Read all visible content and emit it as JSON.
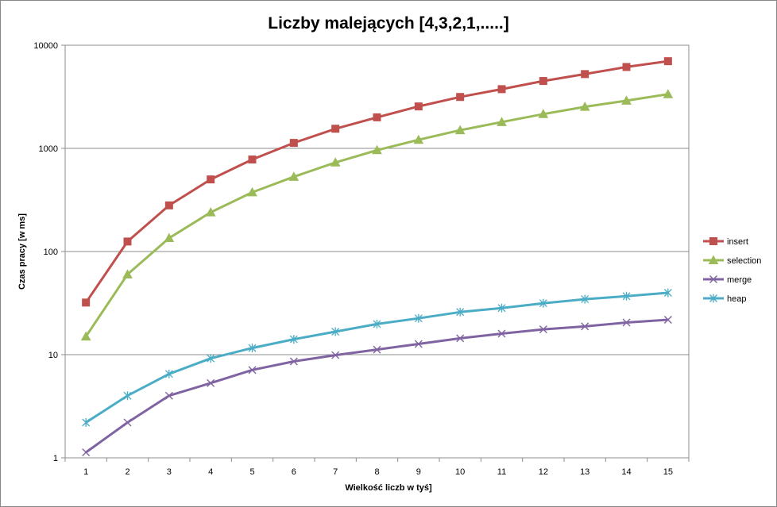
{
  "chart_data": {
    "type": "line",
    "title": "Liczby malejących [4,3,2,1,.....]",
    "xlabel": "Wielkość liczb w tyś]",
    "ylabel": "Czas pracy [w ms]",
    "y_scale": "log",
    "ylim": [
      1,
      10000
    ],
    "y_ticks": [
      "1",
      "10",
      "100",
      "1000",
      "10000"
    ],
    "grid": true,
    "legend_position": "right",
    "categories": [
      "1",
      "2",
      "3",
      "4",
      "5",
      "6",
      "7",
      "8",
      "9",
      "10",
      "11",
      "12",
      "13",
      "14",
      "15"
    ],
    "series": [
      {
        "name": "insert",
        "color": "#C0504D",
        "marker": "square",
        "values": [
          32,
          125,
          280,
          500,
          780,
          1130,
          1550,
          2000,
          2550,
          3150,
          3750,
          4500,
          5250,
          6150,
          7000
        ]
      },
      {
        "name": "selection",
        "color": "#9BBB59",
        "marker": "triangle",
        "values": [
          15,
          60,
          135,
          240,
          375,
          530,
          730,
          960,
          1210,
          1500,
          1800,
          2150,
          2530,
          2900,
          3350
        ]
      },
      {
        "name": "merge",
        "color": "#8064A2",
        "marker": "x",
        "values": [
          1.13,
          2.2,
          4.0,
          5.3,
          7.1,
          8.6,
          9.9,
          11.2,
          12.7,
          14.4,
          16.0,
          17.6,
          18.8,
          20.5,
          21.8
        ]
      },
      {
        "name": "heap",
        "color": "#4BACC6",
        "marker": "star",
        "values": [
          2.2,
          4.0,
          6.5,
          9.2,
          11.6,
          14.1,
          16.7,
          19.8,
          22.5,
          25.9,
          28.3,
          31.5,
          34.5,
          36.9,
          39.8
        ]
      }
    ]
  }
}
